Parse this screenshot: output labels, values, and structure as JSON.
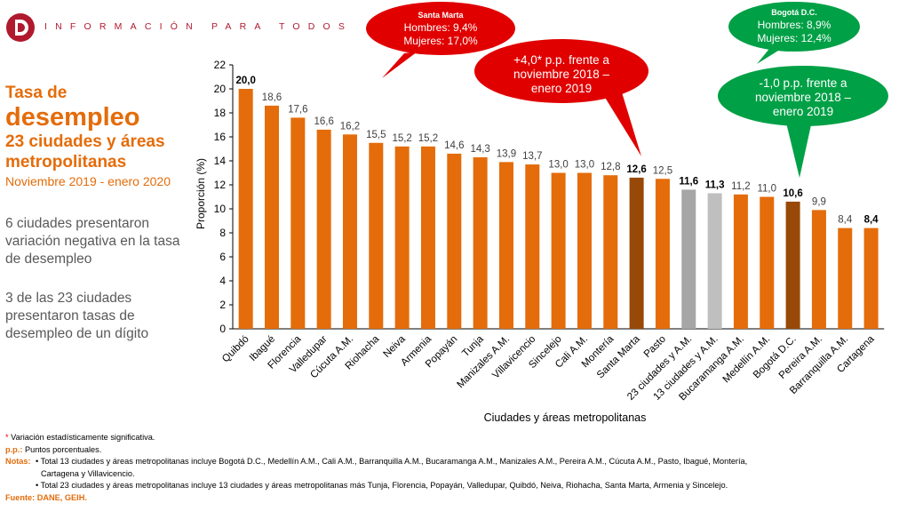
{
  "header": {
    "tagline": "INFORMACIÓN PARA TODOS"
  },
  "left": {
    "title_line1": "Tasa de",
    "title_line2": "desempleo",
    "title_line3": "23 ciudades y áreas",
    "title_line4": "metropolitanas",
    "period": "Noviembre 2019 - enero 2020",
    "para1": "6 ciudades presentaron variación negativa en la tasa de desempleo",
    "para2": "3 de las 23 ciudades presentaron tasas de desempleo de un dígito"
  },
  "colors": {
    "orange": "#e46c0a",
    "highlight": "#984807",
    "gray_dark": "#a6a6a6",
    "gray_light": "#bfbfbf",
    "red_callout": "#e00000",
    "green_callout": "#00a046",
    "brand": "#b0192e"
  },
  "chart_data": {
    "type": "bar",
    "categories": [
      "Quibdó",
      "Ibagué",
      "Florencia",
      "Valledupar",
      "Cúcuta A.M.",
      "Riohacha",
      "Neiva",
      "Armenia",
      "Popayán",
      "Tunja",
      "Manizales A.M.",
      "Villavicencio",
      "Sincelejo",
      "Cali A.M.",
      "Montería",
      "Santa Marta",
      "Pasto",
      "23 ciudades y A.M.",
      "13 ciudades y A.M.",
      "Bucaramanga A.M.",
      "Medellín A.M.",
      "Bogotá D.C.",
      "Pereira A.M.",
      "Barranquilla A.M.",
      "Cartagena"
    ],
    "values": [
      20.0,
      18.6,
      17.6,
      16.6,
      16.2,
      15.5,
      15.2,
      15.2,
      14.6,
      14.3,
      13.9,
      13.7,
      13.0,
      13.0,
      12.8,
      12.6,
      12.5,
      11.6,
      11.3,
      11.2,
      11.0,
      10.6,
      9.9,
      8.4,
      8.4
    ],
    "value_labels": [
      "20,0",
      "18,6",
      "17,6",
      "16,6",
      "16,2",
      "15,5",
      "15,2",
      "15,2",
      "14,6",
      "14,3",
      "13,9",
      "13,7",
      "13,0",
      "13,0",
      "12,8",
      "12,6",
      "12,5",
      "11,6",
      "11,3",
      "11,2",
      "11,0",
      "10,6",
      "9,9",
      "8,4",
      "8,4"
    ],
    "bold_labels": [
      0,
      15,
      17,
      18,
      21,
      24
    ],
    "bar_styles": [
      "orange",
      "orange",
      "orange",
      "orange",
      "orange",
      "orange",
      "orange",
      "orange",
      "orange",
      "orange",
      "orange",
      "orange",
      "orange",
      "orange",
      "orange",
      "highlight",
      "orange",
      "gray_dark",
      "gray_light",
      "orange",
      "orange",
      "highlight",
      "orange",
      "orange",
      "orange"
    ],
    "ylabel": "Proporción (%)",
    "xlabel": "Ciudades y áreas metropolitanas",
    "ylim": [
      0,
      22
    ],
    "yticks": [
      0,
      2,
      4,
      6,
      8,
      10,
      12,
      14,
      16,
      18,
      20,
      22
    ],
    "grid": false
  },
  "callouts": {
    "santa_marta_gender": {
      "title": "Santa Marta",
      "line1": "Hombres: 9,4%",
      "line2": "Mujeres: 17,0%"
    },
    "santa_marta_change": {
      "line1": "+4,0* p.p. frente a",
      "line2": "noviembre 2018 –",
      "line3": "enero 2019"
    },
    "bogota_gender": {
      "title": "Bogotá D.C.",
      "line1": "Hombres: 8,9%",
      "line2": "Mujeres: 12,4%"
    },
    "bogota_change": {
      "line1": "-1,0 p.p. frente a",
      "line2": "noviembre 2018 –",
      "line3": "enero 2019"
    }
  },
  "notes": {
    "significance_mark": "*",
    "significance": "Variación estadísticamente significativa.",
    "pp_label": "p.p.:",
    "pp_text": "Puntos porcentuales.",
    "notes_label": "Notas:",
    "note1_line1": "• Total 13 ciudades y áreas metropolitanas incluye Bogotá D.C., Medellín A.M., Cali A.M., Barranquilla A.M., Bucaramanga A.M., Manizales A.M., Pereira A.M., Cúcuta A.M., Pasto, Ibagué, Montería,",
    "note1_line2": "Cartagena y Villavicencio.",
    "note2": "• Total 23 ciudades y áreas metropolitanas incluye 13 ciudades y áreas metropolitanas más Tunja, Florencia, Popayán, Valledupar, Quibdó, Neiva, Riohacha, Santa Marta, Armenia y Sincelejo.",
    "source_label": "Fuente:",
    "source_text": "DANE, GEIH."
  }
}
